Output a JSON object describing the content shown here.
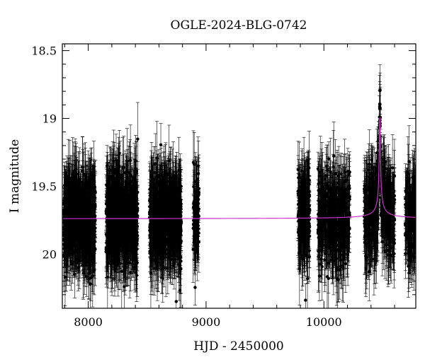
{
  "chart_data": {
    "type": "scatter",
    "title": "OGLE-2024-BLG-0742",
    "xlabel": "HJD - 2450000",
    "ylabel": "I magnitude",
    "xlim": [
      7780,
      10780
    ],
    "ylim": [
      20.4,
      18.45
    ],
    "y_inverted": true,
    "x_ticks": [
      {
        "value": 8000,
        "label": "8000"
      },
      {
        "value": 9000,
        "label": "9000"
      },
      {
        "value": 10000,
        "label": "10000"
      }
    ],
    "y_ticks": [
      {
        "value": 18.5,
        "label": "18.5"
      },
      {
        "value": 19,
        "label": "19"
      },
      {
        "value": 19.5,
        "label": "19.5"
      },
      {
        "value": 20,
        "label": "20"
      }
    ],
    "grid": false,
    "legend": "none",
    "colors": {
      "data": "#000000",
      "model": "#cc33cc"
    },
    "seasons": [
      {
        "start": 7790,
        "end": 8060,
        "n": 700
      },
      {
        "start": 8150,
        "end": 8420,
        "n": 720
      },
      {
        "start": 8520,
        "end": 8790,
        "n": 700
      },
      {
        "start": 8890,
        "end": 8940,
        "n": 90
      },
      {
        "start": 9780,
        "end": 9880,
        "n": 230
      },
      {
        "start": 9950,
        "end": 10220,
        "n": 460
      },
      {
        "start": 10340,
        "end": 10600,
        "n": 470
      },
      {
        "start": 10690,
        "end": 10780,
        "n": 170
      }
    ],
    "series": [
      {
        "kind": "points",
        "y_mean": 19.74,
        "y_scatter": 0.16,
        "error_bar": 0.2
      },
      {
        "kind": "model",
        "baseline": 19.74,
        "peak_x": 10475,
        "peak_y": 18.95,
        "width": 8
      }
    ]
  }
}
